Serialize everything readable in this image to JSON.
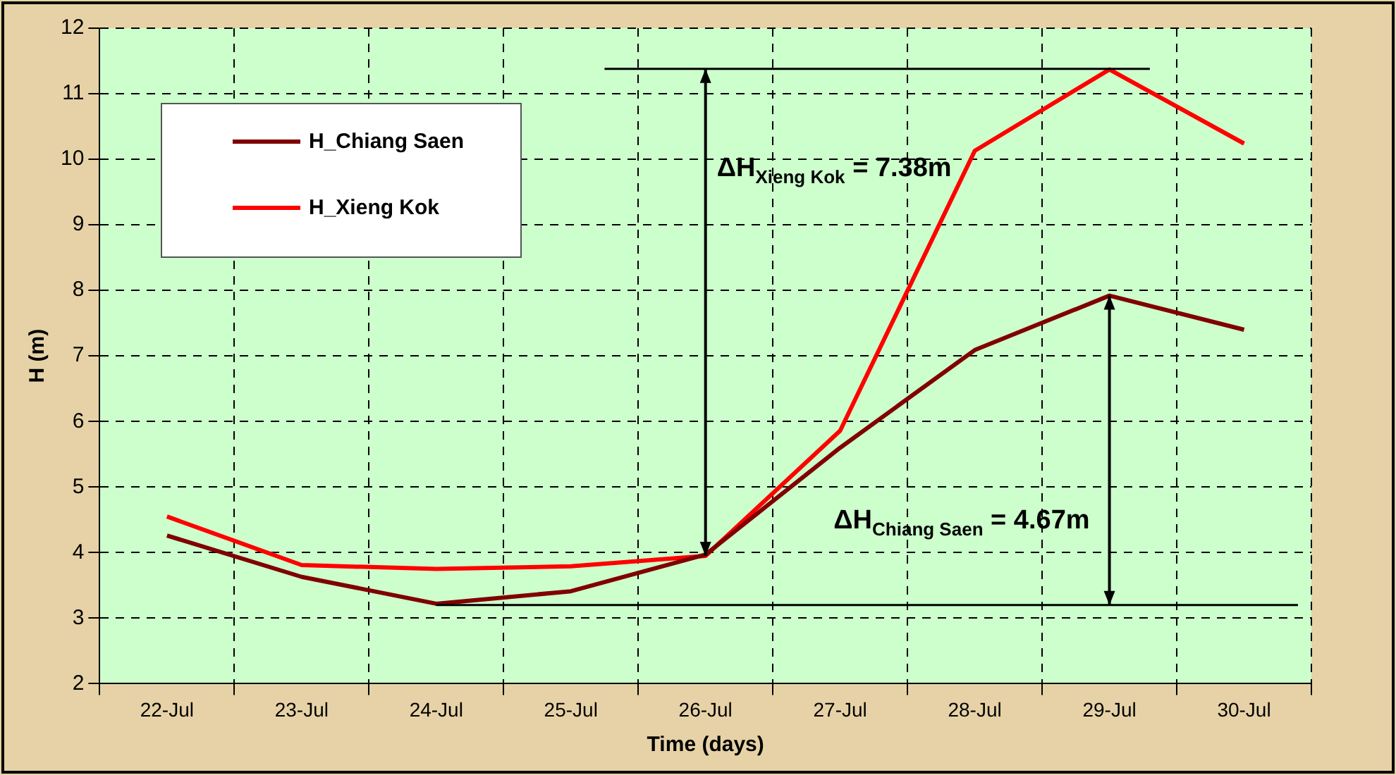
{
  "chart_data": {
    "type": "line",
    "xlabel": "Time (days)",
    "ylabel": "H (m)",
    "categories": [
      "22-Jul",
      "23-Jul",
      "24-Jul",
      "25-Jul",
      "26-Jul",
      "27-Jul",
      "28-Jul",
      "29-Jul",
      "30-Jul"
    ],
    "series": [
      {
        "name": "H_Chiang Saen",
        "color": "#800000",
        "values": [
          4.26,
          3.63,
          3.22,
          3.41,
          3.97,
          5.6,
          7.09,
          7.92,
          7.4
        ]
      },
      {
        "name": "H_Xieng Kok",
        "color": "#ff0000",
        "values": [
          4.55,
          3.81,
          3.75,
          3.79,
          3.95,
          5.86,
          10.13,
          11.37,
          10.24
        ]
      }
    ],
    "ylim": [
      2,
      12
    ],
    "yticks": [
      2,
      3,
      4,
      5,
      6,
      7,
      8,
      9,
      10,
      11,
      12
    ],
    "grid": true,
    "legend": "top left",
    "marker": "none",
    "line_style": "solid",
    "ref_lines": [
      {
        "axis": "y",
        "value": 11.38,
        "color": "#000000"
      },
      {
        "axis": "y",
        "value": 3.2,
        "color": "#000000"
      }
    ],
    "annotations": [
      "ΔH$_{Xieng Kok}$ = 7.38m",
      "ΔH$_{Chiang Saen}$ = 4.67m"
    ]
  }
}
